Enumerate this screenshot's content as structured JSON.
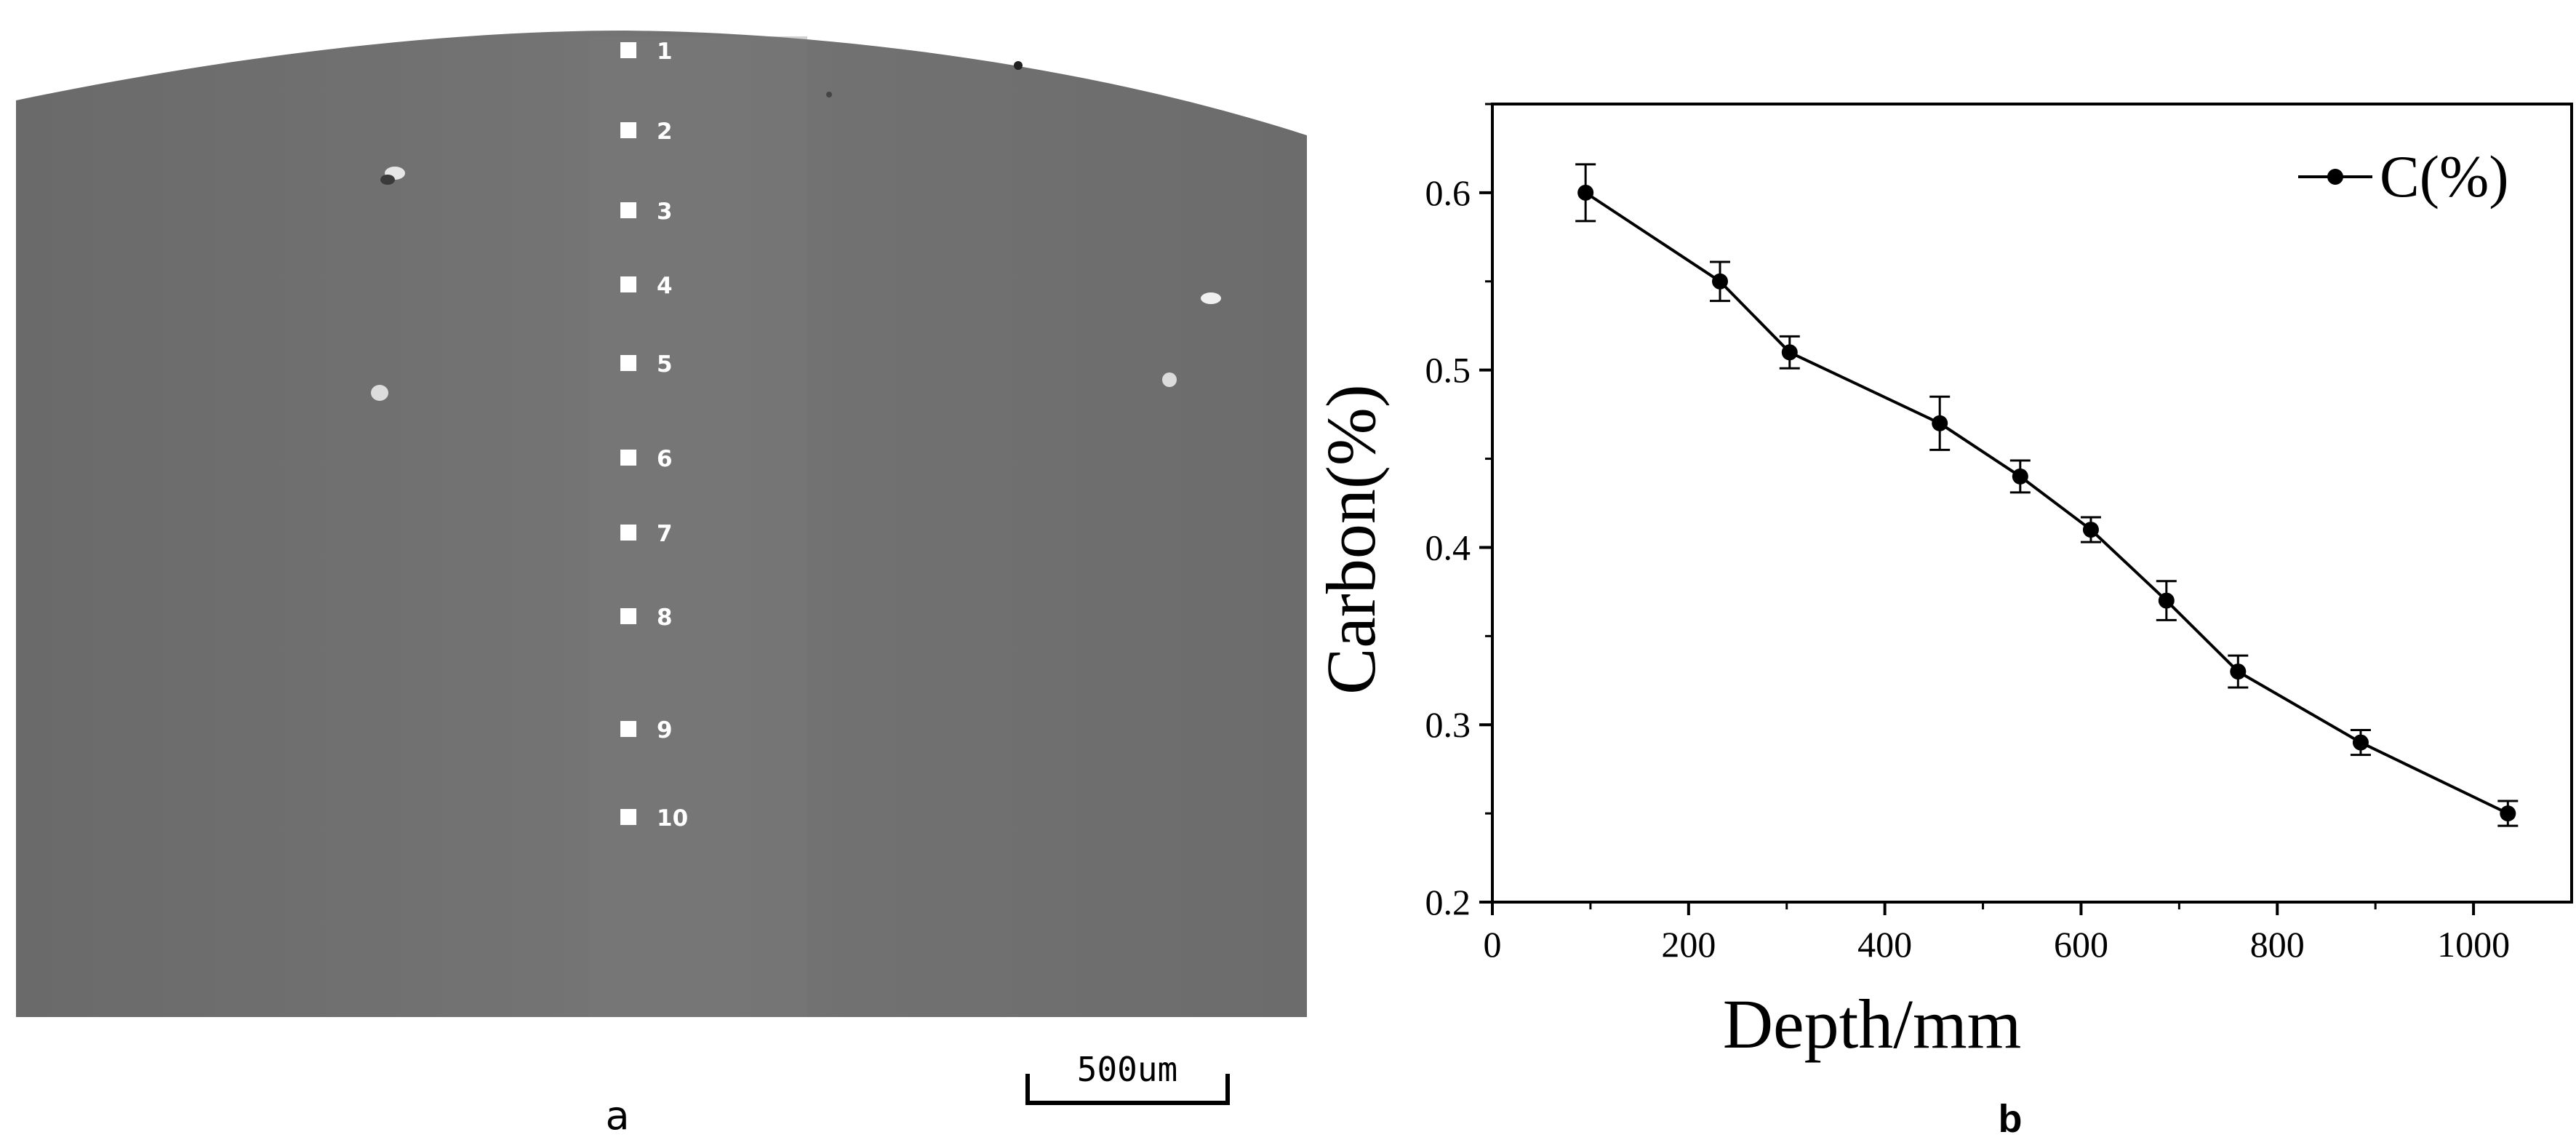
{
  "panels": {
    "left_label": "a",
    "right_label": "b"
  },
  "micrograph": {
    "markers": [
      "1",
      "2",
      "3",
      "4",
      "5",
      "6",
      "7",
      "8",
      "9",
      "10"
    ],
    "scale_bar_label": "500um",
    "colors": {
      "sample": "#6e6e6e",
      "marker": "#ffffff"
    }
  },
  "chart_data": {
    "type": "line",
    "xlabel": "Depth/mm",
    "ylabel": "Carbon(%)",
    "xlim": [
      0,
      1100
    ],
    "ylim": [
      0.2,
      0.65
    ],
    "x_ticks": [
      0,
      200,
      400,
      600,
      800,
      1000
    ],
    "y_ticks": [
      0.2,
      0.3,
      0.4,
      0.5,
      0.6
    ],
    "x_tick_labels": [
      "0",
      "200",
      "400",
      "600",
      "800",
      "1000"
    ],
    "y_tick_labels": [
      "0.2",
      "0.3",
      "0.4",
      "0.5",
      "0.6"
    ],
    "legend_position": "top-right",
    "grid": false,
    "series": [
      {
        "name": "C(%)",
        "color": "#000000",
        "x": [
          95,
          232,
          303,
          456,
          538,
          610,
          687,
          760,
          885,
          1035
        ],
        "y": [
          0.6,
          0.55,
          0.51,
          0.47,
          0.44,
          0.41,
          0.37,
          0.33,
          0.29,
          0.25
        ],
        "error": [
          0.016,
          0.011,
          0.009,
          0.015,
          0.009,
          0.007,
          0.011,
          0.009,
          0.007,
          0.007
        ]
      }
    ]
  }
}
